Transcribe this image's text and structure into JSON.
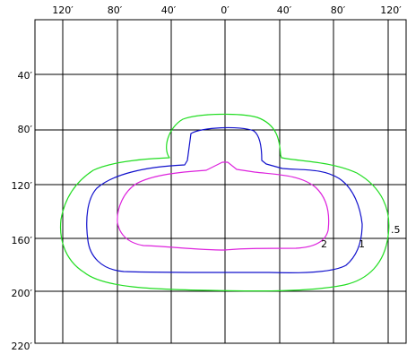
{
  "diagram": {
    "x_axis": {
      "ticks": [
        "120′",
        "80′",
        "40′",
        "0′",
        "40′",
        "80′",
        "120′"
      ]
    },
    "y_axis": {
      "ticks": [
        "40′",
        "80′",
        "120′",
        "160′",
        "200′",
        "220′"
      ]
    },
    "contours": [
      {
        "label": ".5",
        "color": "#22dd22"
      },
      {
        "label": "1",
        "color": "#1111cc"
      },
      {
        "label": "2",
        "color": "#dd22dd"
      }
    ]
  }
}
